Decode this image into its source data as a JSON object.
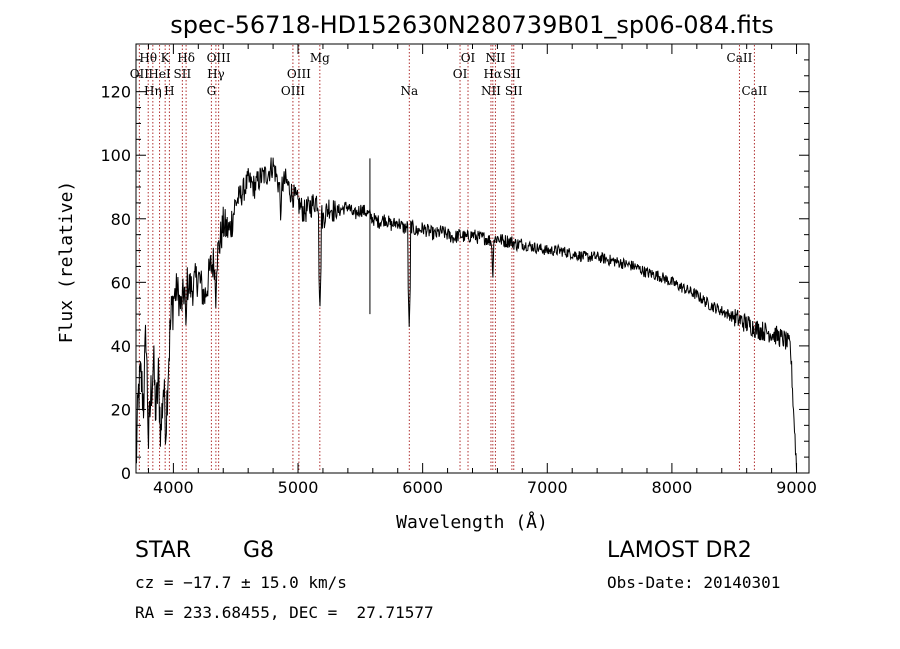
{
  "chart_data": {
    "type": "line",
    "title": "spec-56718-HD152630N280739B01_sp06-084.fits",
    "xlabel": "Wavelength (Å)",
    "ylabel": "Flux (relative)",
    "xlim": [
      3700,
      9100
    ],
    "ylim": [
      0,
      135
    ],
    "x_ticks": [
      4000,
      5000,
      6000,
      7000,
      8000,
      9000
    ],
    "y_ticks": [
      0,
      20,
      40,
      60,
      80,
      100,
      120
    ],
    "grid": false,
    "legend": "none",
    "series": [
      {
        "x": [
          3700,
          3720,
          3740,
          3760,
          3780,
          3800,
          3820,
          3840,
          3860,
          3880,
          3900,
          3920,
          3940,
          3960,
          3980,
          4000,
          4030,
          4060,
          4100,
          4150,
          4200,
          4250,
          4300,
          4350,
          4400,
          4450,
          4500,
          4550,
          4600,
          4650,
          4700,
          4750,
          4800,
          4850,
          4900,
          4950,
          5000,
          5050,
          5100,
          5150,
          5200,
          5250,
          5300,
          5350,
          5400,
          5450,
          5500,
          5550,
          5600,
          5650,
          5700,
          5750,
          5800,
          5850,
          5900,
          5950,
          6000,
          6050,
          6100,
          6150,
          6200,
          6250,
          6300,
          6350,
          6400,
          6450,
          6500,
          6550,
          6600,
          6650,
          6700,
          6750,
          6800,
          6900,
          7000,
          7100,
          7200,
          7300,
          7400,
          7500,
          7600,
          7700,
          7800,
          7900,
          8000,
          8100,
          8200,
          8300,
          8400,
          8500,
          8600,
          8700,
          8800,
          8850,
          8900,
          8950,
          9000
        ],
        "y": [
          2,
          25,
          30,
          22,
          45,
          10,
          25,
          35,
          18,
          30,
          12,
          28,
          15,
          35,
          48,
          55,
          58,
          52,
          60,
          58,
          62,
          55,
          65,
          68,
          78,
          76,
          85,
          88,
          92,
          90,
          93,
          94,
          97,
          90,
          92,
          88,
          85,
          82,
          84,
          86,
          80,
          84,
          82,
          83,
          84,
          81,
          83,
          82,
          80,
          79,
          80,
          78,
          79,
          77,
          78,
          76,
          77,
          76,
          75,
          76,
          75,
          74,
          75,
          74,
          75,
          74,
          74,
          73,
          74,
          73,
          73,
          72,
          72,
          71,
          70,
          70,
          69,
          68,
          68,
          67,
          66,
          65,
          63,
          62,
          60,
          58,
          56,
          53,
          51,
          49,
          47,
          45,
          44,
          43,
          42,
          40,
          2
        ]
      }
    ],
    "absorption_features": [
      {
        "x": 3933,
        "y": 22
      },
      {
        "x": 4101,
        "y": 45
      },
      {
        "x": 4340,
        "y": 52
      },
      {
        "x": 4861,
        "y": 78
      },
      {
        "x": 5175,
        "y": 51
      },
      {
        "x": 5892,
        "y": 46
      },
      {
        "x": 6563,
        "y": 60
      }
    ],
    "spikes": [
      {
        "x": 5577,
        "y_top": 99,
        "y_bottom": 50
      }
    ],
    "lines": [
      {
        "name": "Hθ",
        "x": 3798,
        "row": 0
      },
      {
        "name": "OII",
        "x": 3727,
        "row": 1
      },
      {
        "name": "Hη",
        "x": 3835,
        "row": 2
      },
      {
        "name": "K",
        "x": 3934,
        "row": 0
      },
      {
        "name": "HeI",
        "x": 3889,
        "row": 1
      },
      {
        "name": "H",
        "x": 3968,
        "row": 2
      },
      {
        "name": "Hδ",
        "x": 4102,
        "row": 0
      },
      {
        "name": "SII",
        "x": 4072,
        "row": 1
      },
      {
        "name": "OIII",
        "x": 4363,
        "row": 0
      },
      {
        "name": "Hγ",
        "x": 4341,
        "row": 1
      },
      {
        "name": "G",
        "x": 4305,
        "row": 2
      },
      {
        "name": "Mg",
        "x": 5175,
        "row": 0
      },
      {
        "name": "OIII",
        "x": 5007,
        "row": 1
      },
      {
        "name": "OIII",
        "x": 4959,
        "row": 2
      },
      {
        "name": "Na",
        "x": 5893,
        "row": 2
      },
      {
        "name": "OI",
        "x": 6364,
        "row": 0
      },
      {
        "name": "OI",
        "x": 6300,
        "row": 1
      },
      {
        "name": "NII",
        "x": 6584,
        "row": 0
      },
      {
        "name": "Hα",
        "x": 6563,
        "row": 1
      },
      {
        "name": "SII",
        "x": 6716,
        "row": 1
      },
      {
        "name": "NII",
        "x": 6548,
        "row": 2
      },
      {
        "name": "SII",
        "x": 6731,
        "row": 2
      },
      {
        "name": "CaII",
        "x": 8542,
        "row": 0
      },
      {
        "name": "CaII",
        "x": 8662,
        "row": 2
      }
    ]
  },
  "info": {
    "object_class": "STAR",
    "subclass": "G8",
    "survey": "LAMOST DR2",
    "cz": "cz = −17.7 ± 15.0 km/s",
    "obs_date": "Obs-Date: 20140301",
    "coords": "RA = 233.68455, DEC =  27.71577"
  }
}
